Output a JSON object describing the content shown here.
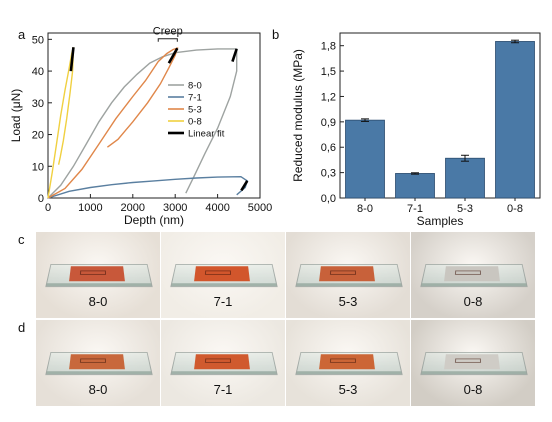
{
  "panels": {
    "a": "a",
    "b": "b",
    "c": "c",
    "d": "d"
  },
  "chart_data": [
    {
      "type": "line",
      "panel": "a",
      "xlabel": "Depth (nm)",
      "ylabel": "Load (μN)",
      "xlim": [
        0,
        5000
      ],
      "ylim": [
        0,
        52
      ],
      "xticks": [
        0,
        1000,
        2000,
        3000,
        4000,
        5000
      ],
      "yticks": [
        0,
        10,
        20,
        30,
        40,
        50
      ],
      "annotation": "Creep",
      "legend_position": "center-right",
      "series": [
        {
          "name": "8-0",
          "color": "#9ea3a1",
          "points": [
            [
              0,
              0
            ],
            [
              300,
              4
            ],
            [
              600,
              10
            ],
            [
              900,
              17
            ],
            [
              1200,
              24
            ],
            [
              1500,
              30
            ],
            [
              1800,
              35
            ],
            [
              2100,
              39
            ],
            [
              2400,
              42.5
            ],
            [
              2700,
              44.5
            ],
            [
              3000,
              45.8
            ],
            [
              3500,
              46.6
            ],
            [
              4000,
              47
            ],
            [
              4450,
              47
            ],
            [
              4450,
              40
            ],
            [
              4300,
              32
            ],
            [
              4000,
              22
            ],
            [
              3700,
              14
            ],
            [
              3450,
              7
            ],
            [
              3250,
              1.5
            ]
          ]
        },
        {
          "name": "7-1",
          "color": "#5a7fa0",
          "points": [
            [
              0,
              0
            ],
            [
              500,
              2.1
            ],
            [
              1000,
              3.3
            ],
            [
              1500,
              4.2
            ],
            [
              2000,
              4.9
            ],
            [
              2500,
              5.4
            ],
            [
              3000,
              5.9
            ],
            [
              3500,
              6.3
            ],
            [
              4000,
              6.6
            ],
            [
              4550,
              6.7
            ],
            [
              4700,
              5.4
            ],
            [
              4650,
              3.3
            ],
            [
              4450,
              1
            ]
          ]
        },
        {
          "name": "5-3",
          "color": "#e0874a",
          "points": [
            [
              0,
              0
            ],
            [
              400,
              3
            ],
            [
              800,
              9
            ],
            [
              1200,
              17
            ],
            [
              1600,
              25
            ],
            [
              2000,
              32
            ],
            [
              2300,
              37
            ],
            [
              2600,
              43
            ],
            [
              2800,
              45.5
            ],
            [
              2950,
              46.8
            ],
            [
              3050,
              47.2
            ],
            [
              3000,
              45
            ],
            [
              2850,
              41
            ],
            [
              2650,
              36
            ],
            [
              2350,
              30
            ],
            [
              2000,
              24
            ],
            [
              1650,
              18.5
            ],
            [
              1400,
              16
            ]
          ]
        },
        {
          "name": "0-8",
          "color": "#f0d040",
          "points": [
            [
              0,
              0
            ],
            [
              100,
              8
            ],
            [
              200,
              17
            ],
            [
              300,
              26
            ],
            [
              400,
              34
            ],
            [
              500,
              41
            ],
            [
              560,
              45.5
            ],
            [
              600,
              47.5
            ],
            [
              580,
              40
            ],
            [
              520,
              33
            ],
            [
              440,
              25
            ],
            [
              360,
              18
            ],
            [
              290,
              13
            ],
            [
              250,
              10.5
            ]
          ]
        }
      ],
      "linear_fit": {
        "name": "Linear fit",
        "color": "#000000",
        "segments": [
          [
            [
              4450,
              47
            ],
            [
              4350,
              43
            ]
          ],
          [
            [
              4700,
              5.4
            ],
            [
              4560,
              2.4
            ]
          ],
          [
            [
              3050,
              47.2
            ],
            [
              2850,
              42.5
            ]
          ],
          [
            [
              600,
              47.5
            ],
            [
              540,
              40
            ]
          ]
        ]
      }
    },
    {
      "type": "bar",
      "panel": "b",
      "xlabel": "Samples",
      "ylabel": "Reduced modulus (MPa)",
      "categories": [
        "8-0",
        "7-1",
        "5-3",
        "0-8"
      ],
      "values": [
        0.92,
        0.29,
        0.47,
        1.85
      ],
      "errors": [
        0.015,
        0.008,
        0.035,
        0.015
      ],
      "ylim": [
        0,
        1.95
      ],
      "yticks": [
        "0,0",
        "0,3",
        "0,6",
        "0,9",
        "1,2",
        "1,5",
        "1,8"
      ],
      "bar_color": "#4a79a6"
    }
  ],
  "photos": {
    "row_c": [
      {
        "label": "8-0",
        "film": "#c8583a",
        "bg": "#e6dfd6",
        "glass": true
      },
      {
        "label": "7-1",
        "film": "#d2562c",
        "bg": "#f1ede6",
        "glass": true
      },
      {
        "label": "5-3",
        "film": "#c8613a",
        "bg": "#e3ddd5",
        "glass": true
      },
      {
        "label": "0-8",
        "film": "#c9c6c0",
        "bg": "#d5d0c9",
        "glass": true
      }
    ],
    "row_d": [
      {
        "label": "8-0",
        "film": "#c8683c",
        "bg": "#e6e0d8",
        "glass": true
      },
      {
        "label": "7-1",
        "film": "#d05a2e",
        "bg": "#ece8e1",
        "glass": true
      },
      {
        "label": "5-3",
        "film": "#cc6636",
        "bg": "#e7e2da",
        "glass": true
      },
      {
        "label": "0-8",
        "film": "#cfccc6",
        "bg": "#d2cdc5",
        "glass": true
      }
    ]
  }
}
